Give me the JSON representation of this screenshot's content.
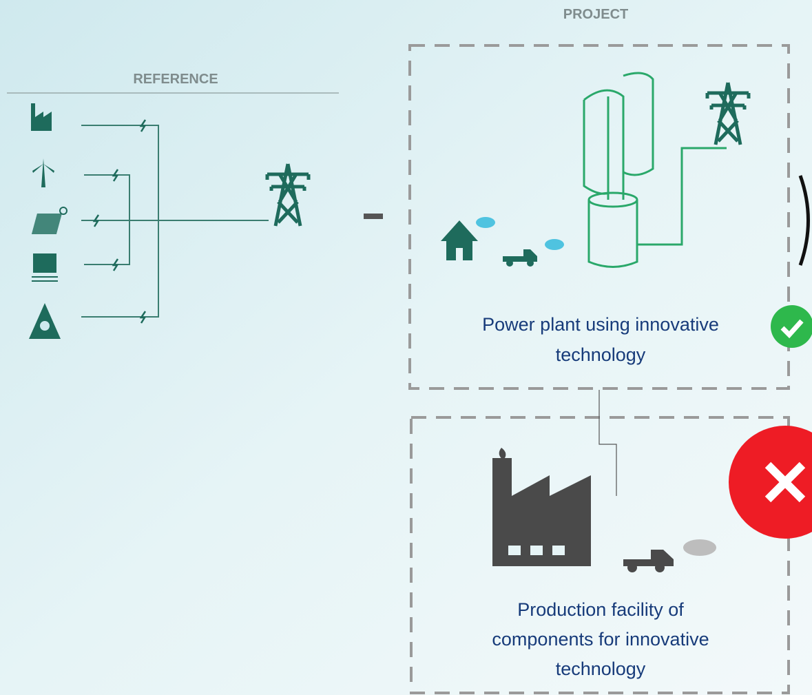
{
  "reference": {
    "title": "REFERENCE"
  },
  "project": {
    "title": "PROJECT",
    "power_plant": {
      "label_lines": [
        "Power plant using innovative",
        "technology"
      ]
    },
    "production_facility": {
      "label_lines": [
        "Production facility of",
        "components for innovative",
        "technology"
      ]
    }
  }
}
